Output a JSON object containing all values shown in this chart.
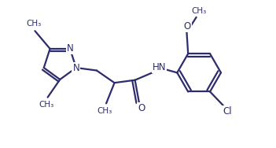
{
  "bg_color": "#ffffff",
  "line_color": "#2c2c6e",
  "line_width": 1.6,
  "font_size": 8.5,
  "figsize": [
    3.51,
    1.88
  ],
  "dpi": 100,
  "xlim": [
    0,
    10
  ],
  "ylim": [
    0,
    5.36
  ]
}
